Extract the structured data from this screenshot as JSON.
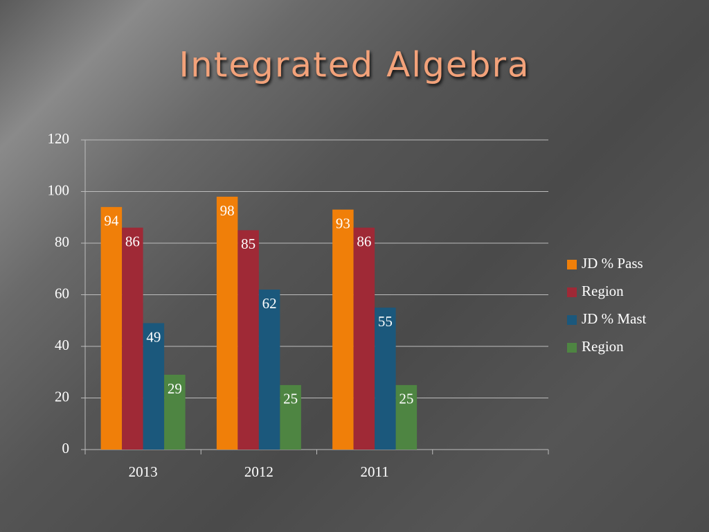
{
  "chart_data": {
    "type": "bar",
    "title": "Integrated Algebra",
    "categories": [
      "2013",
      "2012",
      "2011",
      null
    ],
    "series": [
      {
        "name": "JD % Pass",
        "color": "#f07f09",
        "values": [
          94,
          98,
          93,
          null
        ]
      },
      {
        "name": "Region",
        "color": "#9f2936",
        "values": [
          86,
          85,
          86,
          null
        ]
      },
      {
        "name": "JD % Mast",
        "color": "#1b587c",
        "values": [
          49,
          62,
          55,
          null
        ]
      },
      {
        "name": "Region",
        "color": "#4e8542",
        "values": [
          29,
          25,
          25,
          null
        ]
      }
    ],
    "ylim": [
      0,
      120
    ],
    "yticks": [
      0,
      20,
      40,
      60,
      80,
      100,
      120
    ],
    "grid": true,
    "legend": "right"
  }
}
